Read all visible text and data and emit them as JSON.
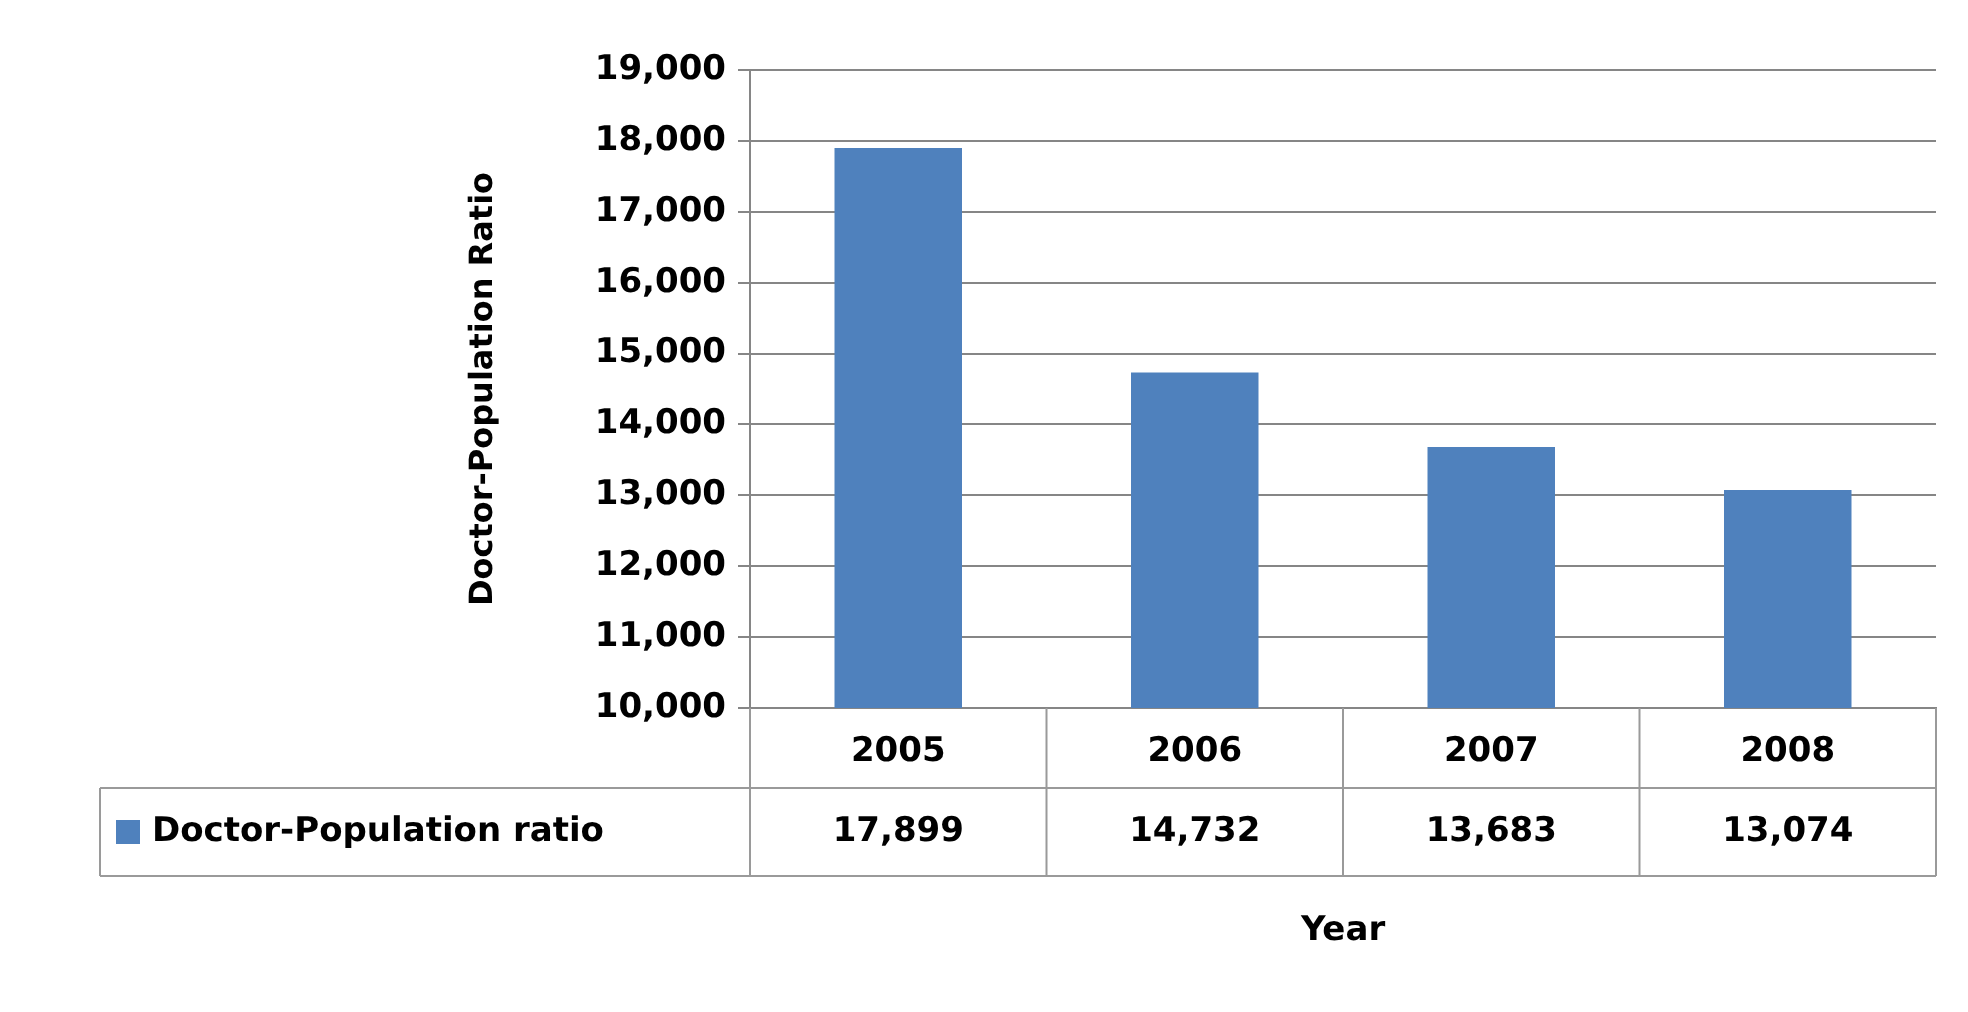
{
  "chart_data": {
    "type": "bar",
    "xlabel": "Year",
    "ylabel": "Doctor-Population Ratio",
    "categories": [
      "2005",
      "2006",
      "2007",
      "2008"
    ],
    "series": [
      {
        "name": "Doctor-Population ratio",
        "color": "#4f81bd",
        "values": [
          17899,
          14732,
          13683,
          13074
        ],
        "value_labels": [
          "17,899",
          "14,732",
          "13,683",
          "13,074"
        ]
      }
    ],
    "ylim": [
      10000,
      19000
    ],
    "yticks": [
      {
        "value": 10000,
        "label": "10,000"
      },
      {
        "value": 11000,
        "label": "11,000"
      },
      {
        "value": 12000,
        "label": "12,000"
      },
      {
        "value": 13000,
        "label": "13,000"
      },
      {
        "value": 14000,
        "label": "14,000"
      },
      {
        "value": 15000,
        "label": "15,000"
      },
      {
        "value": 16000,
        "label": "16,000"
      },
      {
        "value": 17000,
        "label": "17,000"
      },
      {
        "value": 18000,
        "label": "18,000"
      },
      {
        "value": 19000,
        "label": "19,000"
      }
    ],
    "grid": "y",
    "legend": "bottom"
  }
}
